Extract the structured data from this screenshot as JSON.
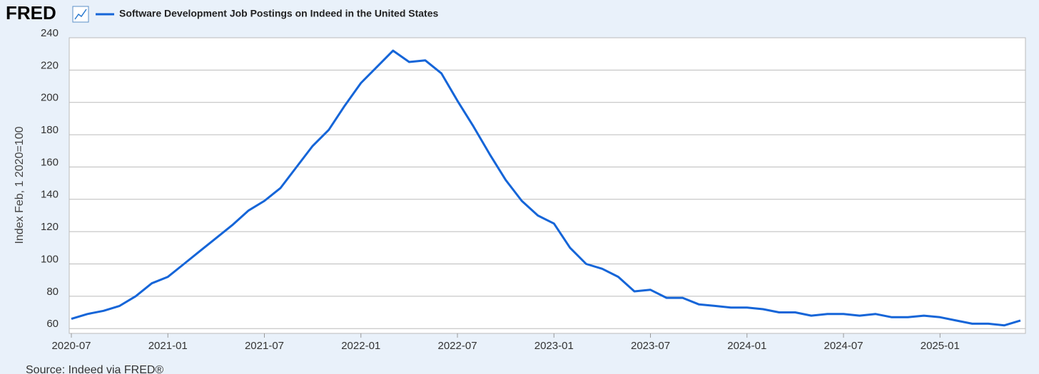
{
  "logo": "FRED",
  "source": "Source: Indeed via FRED®",
  "chart_data": {
    "type": "line",
    "ylabel": "Index Feb, 1 2020=100",
    "x": [
      "2020-07",
      "2020-08",
      "2020-09",
      "2020-10",
      "2020-11",
      "2020-12",
      "2021-01",
      "2021-02",
      "2021-03",
      "2021-04",
      "2021-05",
      "2021-06",
      "2021-07",
      "2021-08",
      "2021-09",
      "2021-10",
      "2021-11",
      "2021-12",
      "2022-01",
      "2022-02",
      "2022-03",
      "2022-04",
      "2022-05",
      "2022-06",
      "2022-07",
      "2022-08",
      "2022-09",
      "2022-10",
      "2022-11",
      "2022-12",
      "2023-01",
      "2023-02",
      "2023-03",
      "2023-04",
      "2023-05",
      "2023-06",
      "2023-07",
      "2023-08",
      "2023-09",
      "2023-10",
      "2023-11",
      "2023-12",
      "2024-01",
      "2024-02",
      "2024-03",
      "2024-04",
      "2024-05",
      "2024-06",
      "2024-07",
      "2024-08",
      "2024-09",
      "2024-10",
      "2024-11",
      "2024-12",
      "2025-01",
      "2025-02",
      "2025-03",
      "2025-04",
      "2025-05",
      "2025-06"
    ],
    "series": [
      {
        "name": "Software Development Job Postings on Indeed in the United States",
        "color": "#1565d8",
        "values": [
          66,
          69,
          71,
          74,
          80,
          88,
          92,
          100,
          108,
          116,
          124,
          133,
          139,
          147,
          160,
          173,
          183,
          198,
          212,
          222,
          232,
          225,
          226,
          218,
          201,
          185,
          168,
          152,
          139,
          130,
          125,
          110,
          100,
          97,
          92,
          83,
          84,
          79,
          79,
          75,
          74,
          73,
          73,
          72,
          70,
          70,
          68,
          69,
          69,
          68,
          69,
          67,
          67,
          68,
          67,
          65,
          63,
          63,
          62,
          65
        ]
      }
    ],
    "xlim": [
      "2020-07",
      "2025-06"
    ],
    "xticks": [
      "2020-07",
      "2021-01",
      "2021-07",
      "2022-01",
      "2022-07",
      "2023-01",
      "2023-07",
      "2024-01",
      "2024-07",
      "2025-01"
    ],
    "ylim": [
      57,
      240
    ],
    "yticks": [
      60,
      80,
      100,
      120,
      140,
      160,
      180,
      200,
      220,
      240
    ],
    "grid": true
  }
}
